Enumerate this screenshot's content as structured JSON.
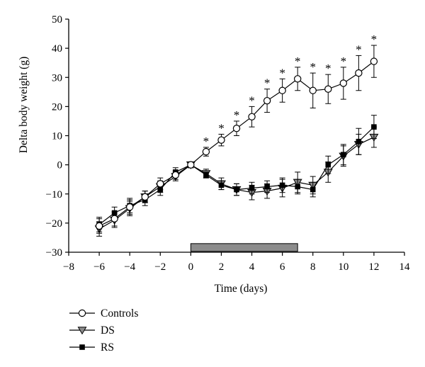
{
  "chart_data": {
    "type": "line",
    "xlabel": "Time (days)",
    "ylabel": "Delta body weight (g)",
    "xlim": [
      -8,
      14
    ],
    "ylim": [
      -30,
      50
    ],
    "xticks": [
      -8,
      -6,
      -4,
      -2,
      0,
      2,
      4,
      6,
      8,
      10,
      12,
      14
    ],
    "yticks": [
      -30,
      -20,
      -10,
      0,
      10,
      20,
      30,
      40,
      50
    ],
    "x_tick_labels": [
      "−8",
      "−6",
      "−4",
      "−2",
      "0",
      "2",
      "4",
      "6",
      "8",
      "10",
      "12",
      "14"
    ],
    "y_tick_labels": [
      "−30",
      "−20",
      "−10",
      "0",
      "10",
      "20",
      "30",
      "40",
      "50"
    ],
    "x": [
      -6,
      -5,
      -4,
      -3,
      -2,
      -1,
      0,
      1,
      2,
      3,
      4,
      5,
      6,
      7,
      8,
      9,
      10,
      11,
      12
    ],
    "series": [
      {
        "name": "Controls",
        "marker": "open-circle",
        "color": "#000000",
        "values": [
          -21,
          -18.5,
          -14.5,
          -11,
          -6.5,
          -3.5,
          0,
          4.5,
          8.5,
          12.5,
          16.5,
          22,
          25.5,
          29.5,
          25.5,
          26,
          28,
          31.5,
          35.5
        ],
        "errors": [
          2.5,
          2.5,
          2.5,
          2.0,
          2.0,
          1.5,
          1.0,
          1.5,
          2.0,
          2.5,
          3.5,
          4.0,
          4.0,
          4.0,
          6.0,
          5.0,
          5.5,
          6.0,
          5.5
        ]
      },
      {
        "name": "DS",
        "marker": "gray-triangle-down",
        "color": "#8a8a8a",
        "values": [
          -22,
          -19,
          -15,
          -11,
          -7.5,
          -4,
          0,
          -3,
          -6.5,
          -8.5,
          -9.5,
          -9,
          -8,
          -6,
          -7,
          -2.5,
          3,
          7,
          9.5
        ],
        "errors": [
          2.5,
          2.5,
          2.5,
          2.0,
          2.0,
          1.5,
          1.0,
          1.5,
          2.0,
          2.0,
          2.5,
          2.5,
          3.0,
          3.5,
          3.0,
          3.5,
          3.5,
          3.5,
          3.5
        ]
      },
      {
        "name": "RS",
        "marker": "black-square",
        "color": "#000000",
        "values": [
          -20.5,
          -16.5,
          -14,
          -12,
          -8.5,
          -2.5,
          0,
          -3.5,
          -7,
          -8.5,
          -8,
          -7.5,
          -7,
          -7.5,
          -8.5,
          0,
          3.5,
          8,
          13
        ],
        "errors": [
          2.5,
          2.0,
          2.5,
          2.0,
          2.0,
          1.5,
          1.0,
          1.0,
          1.5,
          2.0,
          2.0,
          2.0,
          2.5,
          2.5,
          2.5,
          3.0,
          3.5,
          4.5,
          4.0
        ]
      }
    ],
    "significance_marks": {
      "symbol": "*",
      "x": [
        1,
        2,
        3,
        4,
        5,
        6,
        7,
        8,
        9,
        10,
        11,
        12
      ]
    },
    "treatment_bar": {
      "x_start": 0,
      "x_end": 7,
      "y_value": -28.5,
      "color": "#8c8c8c"
    },
    "legend": {
      "placement": "bottom-left",
      "entries": [
        "Controls",
        "DS",
        "RS"
      ]
    },
    "grid": false
  }
}
